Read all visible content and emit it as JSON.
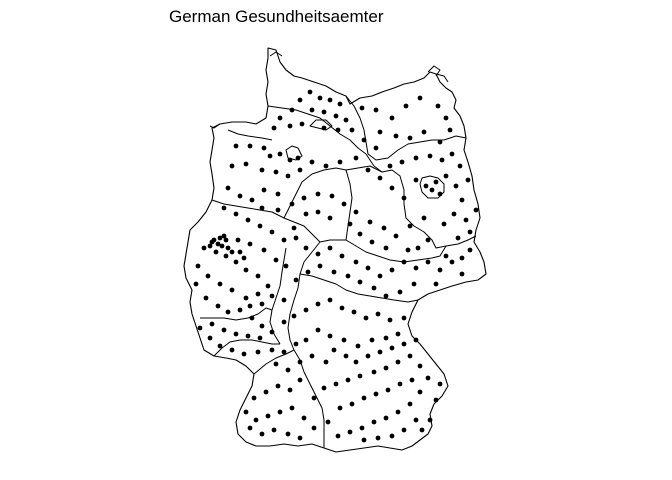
{
  "title": "German Gesundheitsaemter",
  "map": {
    "region": "Germany",
    "boundaries": "federal states",
    "marker": "filled-black-dot",
    "colors": {
      "fill": "#ffffff",
      "stroke": "#000000",
      "marker": "#000000"
    }
  }
}
